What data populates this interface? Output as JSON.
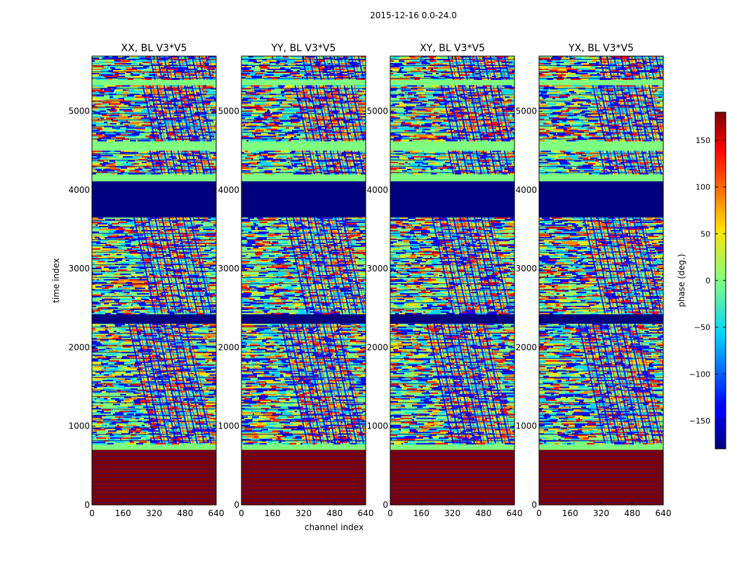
{
  "figure_title": "2015-12-16 0.0-24.0",
  "xlabel": "channel index",
  "ylabel": "time index",
  "colorbar": {
    "label": "phase (deg.)",
    "ticks": [
      150,
      100,
      50,
      0,
      -50,
      -100,
      -150
    ],
    "tick_labels": [
      "150",
      "100",
      "50",
      "0",
      "−50",
      "−100",
      "−150"
    ],
    "range": [
      -180,
      180
    ],
    "colormap": "jet"
  },
  "colors": {
    "jet_low": "#00007f",
    "jet_high": "#7f0000",
    "jet_mid": "#7fff7f",
    "jet_cyan": "#00d4ff",
    "jet_yellow": "#ffff00",
    "jet_blue": "#0000ff",
    "jet_orange": "#ff8000"
  },
  "chart_data": [
    {
      "type": "heatmap",
      "title": "XX, BL V3*V5",
      "xlim": [
        0,
        640
      ],
      "ylim": [
        0,
        5700
      ],
      "xticks": [
        0,
        160,
        320,
        480,
        640
      ],
      "yticks": [
        0,
        1000,
        2000,
        3000,
        4000,
        5000
      ],
      "xlabel": "",
      "ylabel": "time index",
      "bands": [
        {
          "y0": 0,
          "y1": 700,
          "fill": "stripes-red"
        },
        {
          "y0": 700,
          "y1": 780,
          "fill": "green"
        },
        {
          "y0": 780,
          "y1": 2300,
          "fill": "phase-wrap"
        },
        {
          "y0": 2300,
          "y1": 2430,
          "fill": "blue"
        },
        {
          "y0": 2430,
          "y1": 3650,
          "fill": "phase-wrap"
        },
        {
          "y0": 3650,
          "y1": 4110,
          "fill": "blue"
        },
        {
          "y0": 4110,
          "y1": 4200,
          "fill": "green"
        },
        {
          "y0": 4200,
          "y1": 4500,
          "fill": "phase-wrap"
        },
        {
          "y0": 4500,
          "y1": 4620,
          "fill": "green"
        },
        {
          "y0": 4620,
          "y1": 5330,
          "fill": "phase-wrap"
        },
        {
          "y0": 5330,
          "y1": 5400,
          "fill": "green"
        },
        {
          "y0": 5400,
          "y1": 5700,
          "fill": "phase-wrap"
        }
      ]
    },
    {
      "type": "heatmap",
      "title": "YY, BL V3*V5",
      "xlim": [
        0,
        640
      ],
      "ylim": [
        0,
        5700
      ],
      "xticks": [
        0,
        160,
        320,
        480,
        640
      ],
      "yticks": [
        0,
        1000,
        2000,
        3000,
        4000,
        5000
      ],
      "xlabel": "channel index",
      "ylabel": "",
      "bands": [
        {
          "y0": 0,
          "y1": 700,
          "fill": "stripes-red"
        },
        {
          "y0": 700,
          "y1": 780,
          "fill": "green"
        },
        {
          "y0": 780,
          "y1": 2300,
          "fill": "phase-wrap"
        },
        {
          "y0": 2300,
          "y1": 2430,
          "fill": "blue"
        },
        {
          "y0": 2430,
          "y1": 3650,
          "fill": "phase-wrap"
        },
        {
          "y0": 3650,
          "y1": 4110,
          "fill": "blue"
        },
        {
          "y0": 4110,
          "y1": 4200,
          "fill": "green"
        },
        {
          "y0": 4200,
          "y1": 4500,
          "fill": "phase-wrap"
        },
        {
          "y0": 4500,
          "y1": 4620,
          "fill": "green"
        },
        {
          "y0": 4620,
          "y1": 5330,
          "fill": "phase-wrap"
        },
        {
          "y0": 5330,
          "y1": 5400,
          "fill": "green"
        },
        {
          "y0": 5400,
          "y1": 5700,
          "fill": "phase-wrap"
        }
      ]
    },
    {
      "type": "heatmap",
      "title": "XY, BL V3*V5",
      "xlim": [
        0,
        640
      ],
      "ylim": [
        0,
        5700
      ],
      "xticks": [
        0,
        160,
        320,
        480,
        640
      ],
      "yticks": [
        0,
        1000,
        2000,
        3000,
        4000,
        5000
      ],
      "xlabel": "",
      "ylabel": "",
      "bands": [
        {
          "y0": 0,
          "y1": 700,
          "fill": "stripes-red"
        },
        {
          "y0": 700,
          "y1": 780,
          "fill": "green"
        },
        {
          "y0": 780,
          "y1": 2300,
          "fill": "phase-wrap"
        },
        {
          "y0": 2300,
          "y1": 2430,
          "fill": "blue"
        },
        {
          "y0": 2430,
          "y1": 3650,
          "fill": "phase-wrap"
        },
        {
          "y0": 3650,
          "y1": 4110,
          "fill": "blue"
        },
        {
          "y0": 4110,
          "y1": 4200,
          "fill": "green"
        },
        {
          "y0": 4200,
          "y1": 4500,
          "fill": "phase-wrap"
        },
        {
          "y0": 4500,
          "y1": 4620,
          "fill": "green"
        },
        {
          "y0": 4620,
          "y1": 5330,
          "fill": "phase-wrap"
        },
        {
          "y0": 5330,
          "y1": 5400,
          "fill": "green"
        },
        {
          "y0": 5400,
          "y1": 5700,
          "fill": "phase-wrap"
        }
      ]
    },
    {
      "type": "heatmap",
      "title": "YX, BL V3*V5",
      "xlim": [
        0,
        640
      ],
      "ylim": [
        0,
        5700
      ],
      "xticks": [
        0,
        160,
        320,
        480,
        640
      ],
      "yticks": [
        0,
        1000,
        2000,
        3000,
        4000,
        5000
      ],
      "xlabel": "",
      "ylabel": "",
      "bands": [
        {
          "y0": 0,
          "y1": 700,
          "fill": "stripes-red"
        },
        {
          "y0": 700,
          "y1": 780,
          "fill": "green"
        },
        {
          "y0": 780,
          "y1": 2300,
          "fill": "phase-wrap"
        },
        {
          "y0": 2300,
          "y1": 2430,
          "fill": "blue"
        },
        {
          "y0": 2430,
          "y1": 3650,
          "fill": "phase-wrap"
        },
        {
          "y0": 3650,
          "y1": 4110,
          "fill": "blue"
        },
        {
          "y0": 4110,
          "y1": 4200,
          "fill": "green"
        },
        {
          "y0": 4200,
          "y1": 4500,
          "fill": "phase-wrap"
        },
        {
          "y0": 4500,
          "y1": 4620,
          "fill": "green"
        },
        {
          "y0": 4620,
          "y1": 5330,
          "fill": "phase-wrap"
        },
        {
          "y0": 5330,
          "y1": 5400,
          "fill": "green"
        },
        {
          "y0": 5400,
          "y1": 5700,
          "fill": "phase-wrap"
        }
      ]
    }
  ]
}
